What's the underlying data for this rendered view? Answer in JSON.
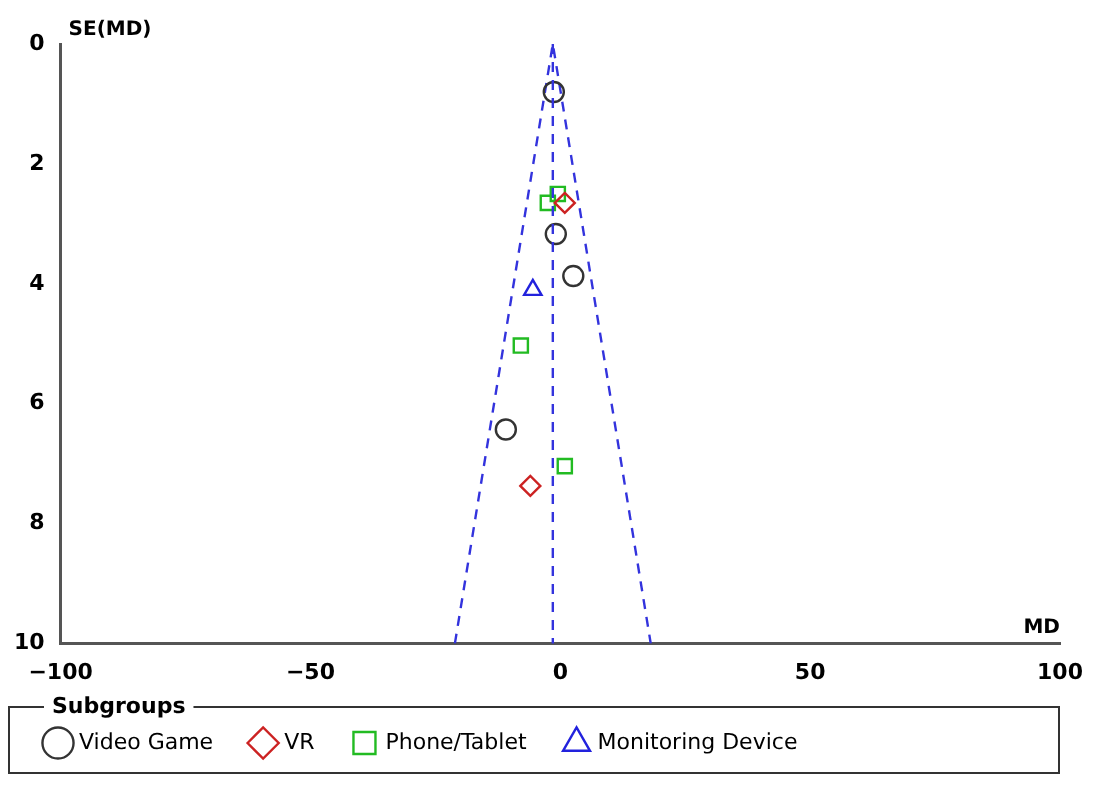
{
  "chart_data": {
    "type": "scatter",
    "xlabel": "MD",
    "ylabel": "SE(MD)",
    "legend_title": "Subgroups",
    "legend": "bottom",
    "grid": false,
    "xlim": [
      -100,
      100
    ],
    "xticks": [
      {
        "value": -100,
        "label": "−100"
      },
      {
        "value": -50,
        "label": "−50"
      },
      0,
      50,
      100
    ],
    "ylim": [
      10,
      0
    ],
    "yticks": [
      0,
      2,
      4,
      6,
      8,
      10
    ],
    "series": [
      {
        "name": "Video Game",
        "type": "scatter",
        "marker": "circle",
        "color": "#333333",
        "x": [
          -1.3,
          -0.9,
          2.6,
          -10.9
        ],
        "values": [
          0.8,
          3.17,
          3.87,
          6.43
        ]
      },
      {
        "name": "VR",
        "type": "scatter",
        "marker": "diamond",
        "color": "#cc2222",
        "x": [
          0.9,
          -6.0
        ],
        "values": [
          2.65,
          7.37
        ]
      },
      {
        "name": "Phone/Tablet",
        "type": "scatter",
        "marker": "square",
        "color": "#22bb22",
        "x": [
          -0.5,
          -2.5,
          -7.9,
          0.9
        ],
        "values": [
          2.5,
          2.65,
          5.03,
          7.04
        ]
      },
      {
        "name": "Monitoring Device",
        "type": "scatter",
        "marker": "triangle",
        "color": "#2222dd",
        "x": [
          -5.5
        ],
        "values": [
          4.1
        ]
      },
      {
        "type": "line",
        "marker": "none",
        "line_style": "dashed",
        "color": "#3333dd",
        "x": [
          -21.1,
          -1.5,
          18.1
        ],
        "values": [
          10,
          0,
          10
        ]
      }
    ],
    "ref_lines": [
      {
        "axis": "x",
        "value": -1.5,
        "color": "#3333dd",
        "line_style": "dashed"
      }
    ]
  }
}
